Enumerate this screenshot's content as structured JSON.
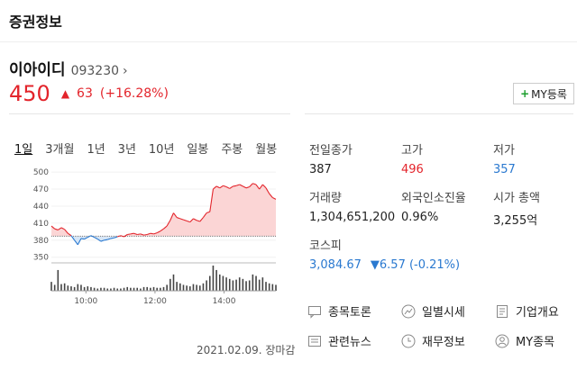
{
  "header": {
    "title": "증권정보"
  },
  "stock": {
    "name": "이아이디",
    "code": "093230",
    "chevron": "›",
    "price": "450",
    "change": "63",
    "rate": "(+16.28%)",
    "direction_icon": "triangle-up-icon",
    "up_color": "#e3242b",
    "down_color": "#2a79d0"
  },
  "my_button": {
    "label": "MY등록"
  },
  "tabs": [
    "1일",
    "3개월",
    "1년",
    "3년",
    "10년",
    "일봉",
    "주봉",
    "월봉"
  ],
  "stats": {
    "prev_close_label": "전일종가",
    "prev_close": "387",
    "high_label": "고가",
    "high": "496",
    "low_label": "저가",
    "low": "357",
    "volume_label": "거래량",
    "volume": "1,304,651,200",
    "foreign_label": "외국인소진율",
    "foreign": "0.96%",
    "mcap_label": "시가 총액",
    "mcap": "3,255억",
    "index_label": "코스피",
    "index_value": "3,084.67",
    "index_change": "▼6.57 (-0.21%)"
  },
  "links": [
    {
      "label": "종목토론",
      "icon": "chat-icon"
    },
    {
      "label": "일별시세",
      "icon": "trend-icon"
    },
    {
      "label": "기업개요",
      "icon": "list-icon"
    },
    {
      "label": "관련뉴스",
      "icon": "news-icon"
    },
    {
      "label": "재무정보",
      "icon": "clock-icon"
    },
    {
      "label": "MY종목",
      "icon": "user-icon"
    }
  ],
  "date_note": "2021.02.09. 장마감",
  "chart_data": {
    "type": "line",
    "ylim": [
      340,
      505
    ],
    "yticks": [
      "500",
      "470",
      "440",
      "410",
      "380",
      "350"
    ],
    "xticks": [
      "10:00",
      "12:00",
      "14:00"
    ],
    "baseline": 387,
    "t": [
      0,
      4,
      8,
      12,
      16,
      20,
      24,
      28,
      32,
      36,
      40,
      44,
      48,
      52,
      56,
      60,
      64,
      68,
      72,
      76,
      80,
      84,
      88,
      92,
      96,
      100,
      104,
      108,
      112,
      116,
      120,
      124,
      128,
      132,
      136,
      140,
      144,
      148,
      152,
      156,
      160,
      164,
      168,
      172,
      176,
      180,
      184,
      188,
      192,
      196,
      200,
      204,
      208,
      212,
      216,
      220,
      224,
      228,
      232,
      236,
      240,
      244,
      248,
      252,
      256,
      260,
      264,
      268,
      272
    ],
    "y": [
      405,
      400,
      398,
      402,
      399,
      392,
      388,
      380,
      372,
      383,
      382,
      385,
      388,
      385,
      382,
      378,
      380,
      381,
      383,
      384,
      386,
      388,
      386,
      390,
      391,
      392,
      390,
      391,
      389,
      390,
      392,
      391,
      393,
      396,
      400,
      405,
      415,
      428,
      420,
      418,
      416,
      414,
      412,
      418,
      415,
      413,
      420,
      428,
      430,
      470,
      475,
      472,
      476,
      474,
      471,
      475,
      476,
      478,
      475,
      472,
      474,
      480,
      478,
      470,
      478,
      472,
      462,
      455,
      452
    ],
    "volume": [
      12,
      8,
      28,
      9,
      10,
      7,
      6,
      5,
      9,
      8,
      5,
      6,
      5,
      4,
      3,
      4,
      4,
      3,
      3,
      4,
      3,
      3,
      4,
      5,
      4,
      4,
      4,
      3,
      5,
      5,
      4,
      5,
      4,
      4,
      5,
      8,
      16,
      22,
      12,
      10,
      8,
      7,
      6,
      9,
      8,
      7,
      10,
      14,
      20,
      34,
      28,
      22,
      20,
      18,
      16,
      14,
      15,
      18,
      16,
      13,
      14,
      22,
      20,
      15,
      18,
      12,
      10,
      9,
      8
    ]
  }
}
